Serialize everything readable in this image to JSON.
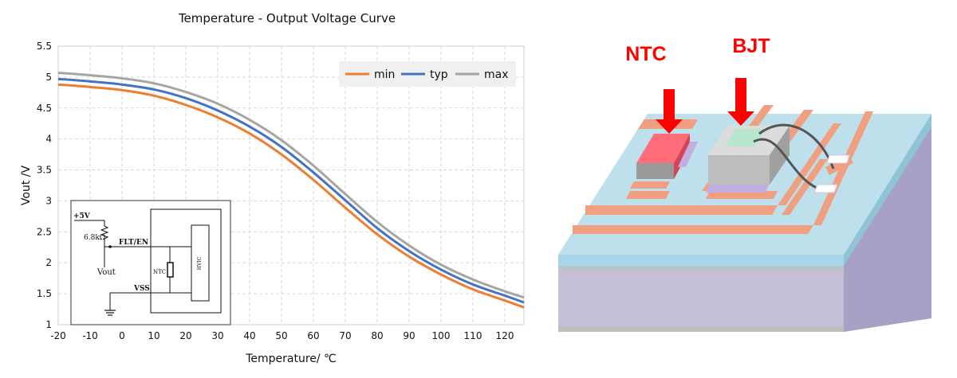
{
  "chart_data": {
    "type": "line",
    "title": "Temperature - Output Voltage Curve",
    "xlabel": "Temperature/ ℃",
    "ylabel": "Vout /V",
    "xlim": [
      -20,
      126
    ],
    "ylim": [
      1,
      5.5
    ],
    "x_ticks": [
      "-20",
      "-10",
      "0",
      "10",
      "20",
      "30",
      "40",
      "50",
      "60",
      "70",
      "80",
      "90",
      "100",
      "110",
      "120"
    ],
    "y_ticks": [
      "1",
      "1.5",
      "2",
      "2.5",
      "3",
      "3.5",
      "4",
      "4.5",
      "5",
      "5.5"
    ],
    "grid": true,
    "legend_position": "top-right",
    "x": [
      -20,
      -10,
      0,
      10,
      20,
      30,
      40,
      50,
      60,
      70,
      80,
      90,
      100,
      110,
      120,
      126
    ],
    "series": [
      {
        "name": "min",
        "color": "#ed7d31",
        "values": [
          4.88,
          4.84,
          4.79,
          4.7,
          4.55,
          4.35,
          4.09,
          3.75,
          3.34,
          2.89,
          2.46,
          2.1,
          1.81,
          1.57,
          1.39,
          1.28
        ]
      },
      {
        "name": "typ",
        "color": "#4472c4",
        "values": [
          4.97,
          4.93,
          4.88,
          4.8,
          4.66,
          4.46,
          4.2,
          3.87,
          3.46,
          3.01,
          2.56,
          2.19,
          1.89,
          1.65,
          1.47,
          1.36
        ]
      },
      {
        "name": "max",
        "color": "#a5a5a5",
        "values": [
          5.07,
          5.03,
          4.98,
          4.9,
          4.76,
          4.57,
          4.31,
          3.98,
          3.57,
          3.11,
          2.66,
          2.28,
          1.97,
          1.73,
          1.54,
          1.44
        ]
      }
    ]
  },
  "schematic": {
    "supply": "+5V",
    "resistor": "6.8kΩ",
    "pin_flt": "FLT/EN",
    "vout": "Vout",
    "ntc": "NTC",
    "pin_vss": "VSS",
    "chip": "HVIC"
  },
  "package_diagram": {
    "ntc_label": "NTC",
    "bjt_label": "BJT",
    "colors": {
      "arrow": "#ff0000",
      "substrate_top": "#bde0ec",
      "substrate_side": "#c5bfd8",
      "copper": "#f0a080"
    }
  }
}
